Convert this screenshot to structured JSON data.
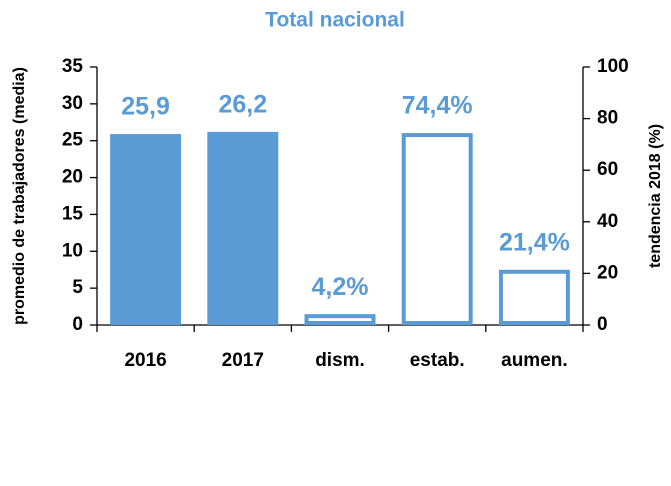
{
  "chart_data": {
    "type": "bar",
    "title": "Total nacional",
    "ylabel": "promedio de trabajadores (media)",
    "y2label": "tendencia 2018 (%)",
    "categories": [
      "2016",
      "2017",
      "dism.",
      "estab.",
      "aumen."
    ],
    "series": [
      {
        "color": "#5b9bd5",
        "fill": true,
        "values": [
          25.9,
          26.2,
          null,
          null,
          null
        ],
        "value_labels": [
          "25,9",
          "26,2",
          null,
          null,
          null
        ]
      },
      {
        "color": "#5b9bd5",
        "fill": false,
        "axis": "y2",
        "values": [
          null,
          null,
          4.2,
          74.4,
          21.4
        ],
        "value_labels": [
          null,
          null,
          "4,2%",
          "74,4%",
          "21,4%"
        ]
      }
    ],
    "ylim": [
      0,
      35
    ],
    "yticks": [
      0,
      5,
      10,
      15,
      20,
      25,
      30,
      35
    ],
    "y2lim": [
      0,
      100
    ],
    "y2ticks": [
      0,
      20,
      40,
      60,
      80,
      100
    ],
    "grid": false
  }
}
